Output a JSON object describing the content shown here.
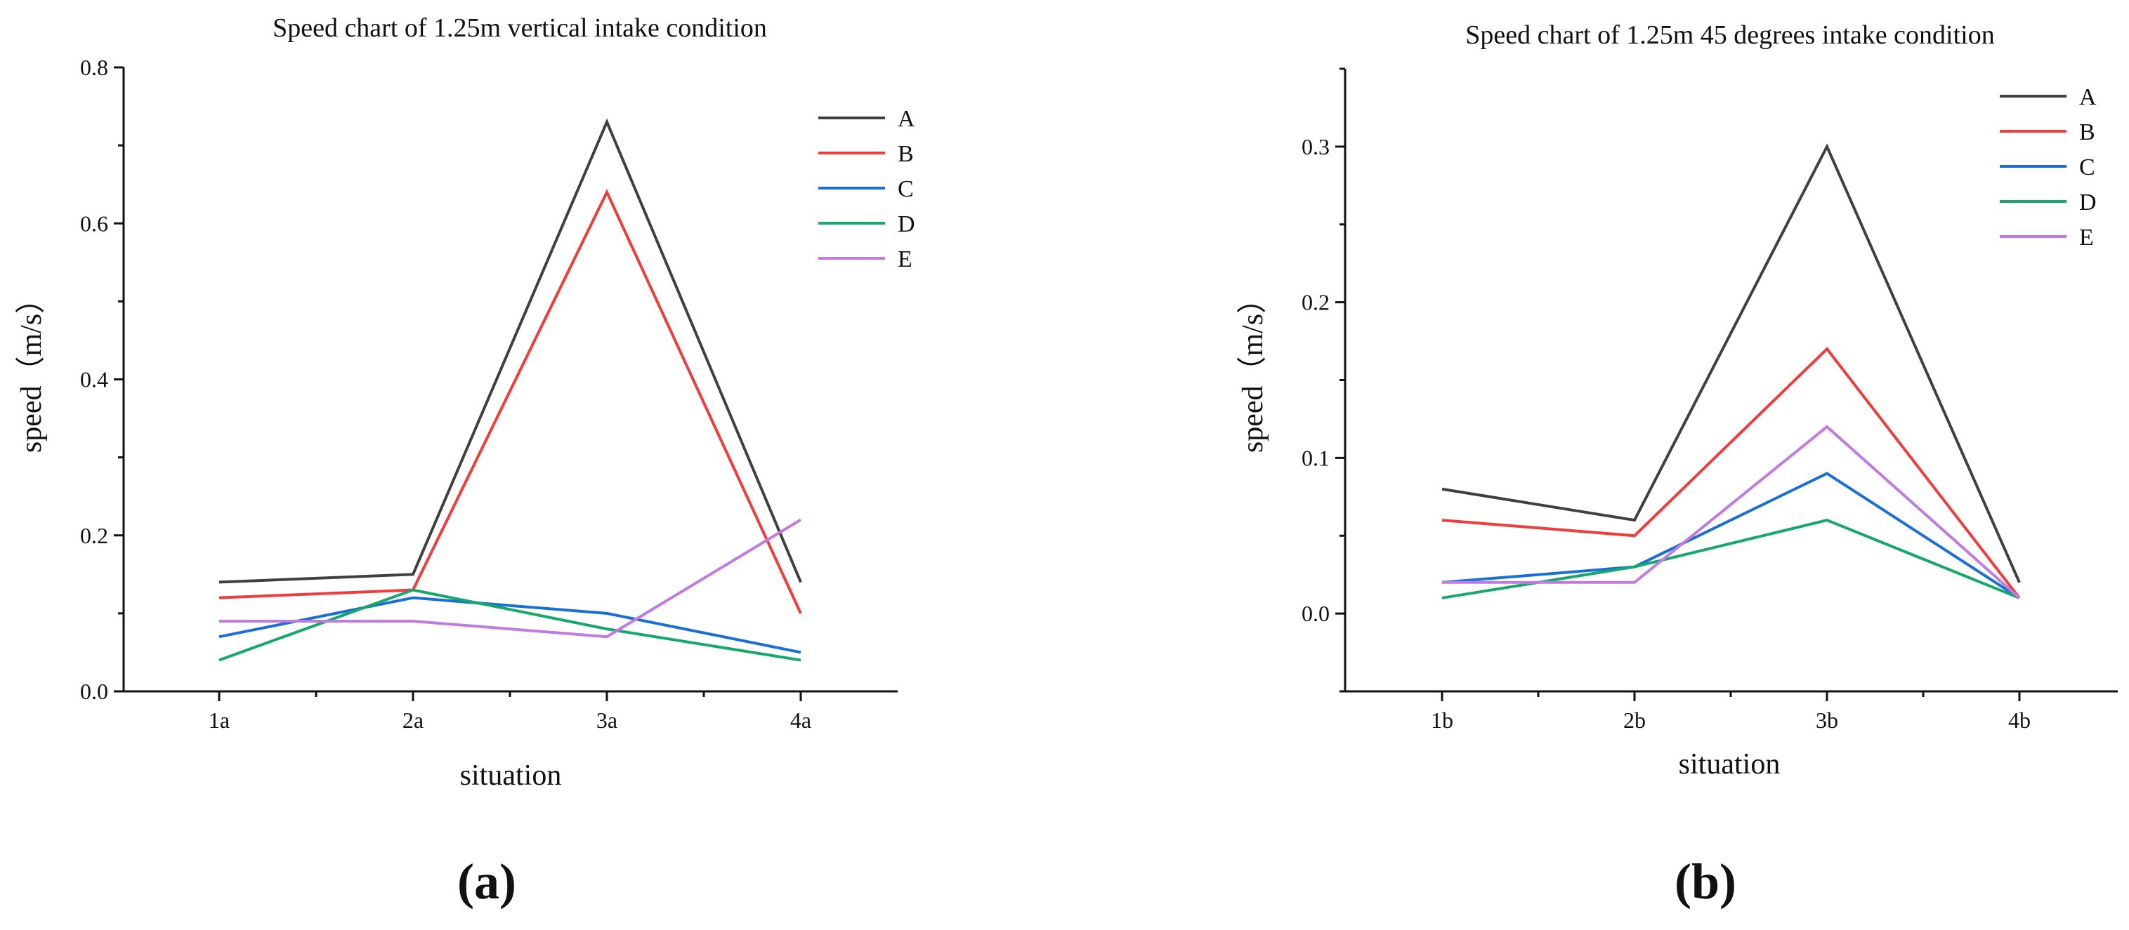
{
  "chart_data": [
    {
      "type": "line",
      "title": "Speed chart of 1.25m vertical intake condition",
      "xlabel": "situation",
      "ylabel": "speed（m/s）",
      "panel_label": "(a)",
      "categories": [
        "1a",
        "2a",
        "3a",
        "4a"
      ],
      "ylim": [
        0,
        0.8
      ],
      "yticks": [
        "0.0",
        "0.2",
        "0.4",
        "0.6",
        "0.8"
      ],
      "legend_position": "top-right",
      "series": [
        {
          "name": "A",
          "color": "#404040",
          "values": [
            0.14,
            0.15,
            0.73,
            0.14
          ]
        },
        {
          "name": "B",
          "color": "#f03c3c",
          "values": [
            0.12,
            0.13,
            0.64,
            0.1
          ]
        },
        {
          "name": "C",
          "color": "#1a6fd6",
          "values": [
            0.07,
            0.12,
            0.1,
            0.05
          ]
        },
        {
          "name": "D",
          "color": "#16a86a",
          "values": [
            0.04,
            0.13,
            0.08,
            0.04
          ]
        },
        {
          "name": "E",
          "color": "#c07ae0",
          "values": [
            0.09,
            0.09,
            0.07,
            0.22
          ]
        }
      ]
    },
    {
      "type": "line",
      "title": "Speed chart of 1.25m 45 degrees intake condition",
      "xlabel": "situation",
      "ylabel": "speed（m/s）",
      "panel_label": "(b)",
      "categories": [
        "1b",
        "2b",
        "3b",
        "4b"
      ],
      "ylim": [
        -0.05,
        0.35
      ],
      "yticks": [
        "0.0",
        "0.1",
        "0.2",
        "0.3"
      ],
      "legend_position": "top-right",
      "series": [
        {
          "name": "A",
          "color": "#404040",
          "values": [
            0.08,
            0.06,
            0.3,
            0.02
          ]
        },
        {
          "name": "B",
          "color": "#f03c3c",
          "values": [
            0.06,
            0.05,
            0.17,
            0.01
          ]
        },
        {
          "name": "C",
          "color": "#1a6fd6",
          "values": [
            0.02,
            0.03,
            0.09,
            0.01
          ]
        },
        {
          "name": "D",
          "color": "#16a86a",
          "values": [
            0.01,
            0.03,
            0.06,
            0.01
          ]
        },
        {
          "name": "E",
          "color": "#c07ae0",
          "values": [
            0.02,
            0.02,
            0.12,
            0.01
          ]
        }
      ]
    }
  ]
}
